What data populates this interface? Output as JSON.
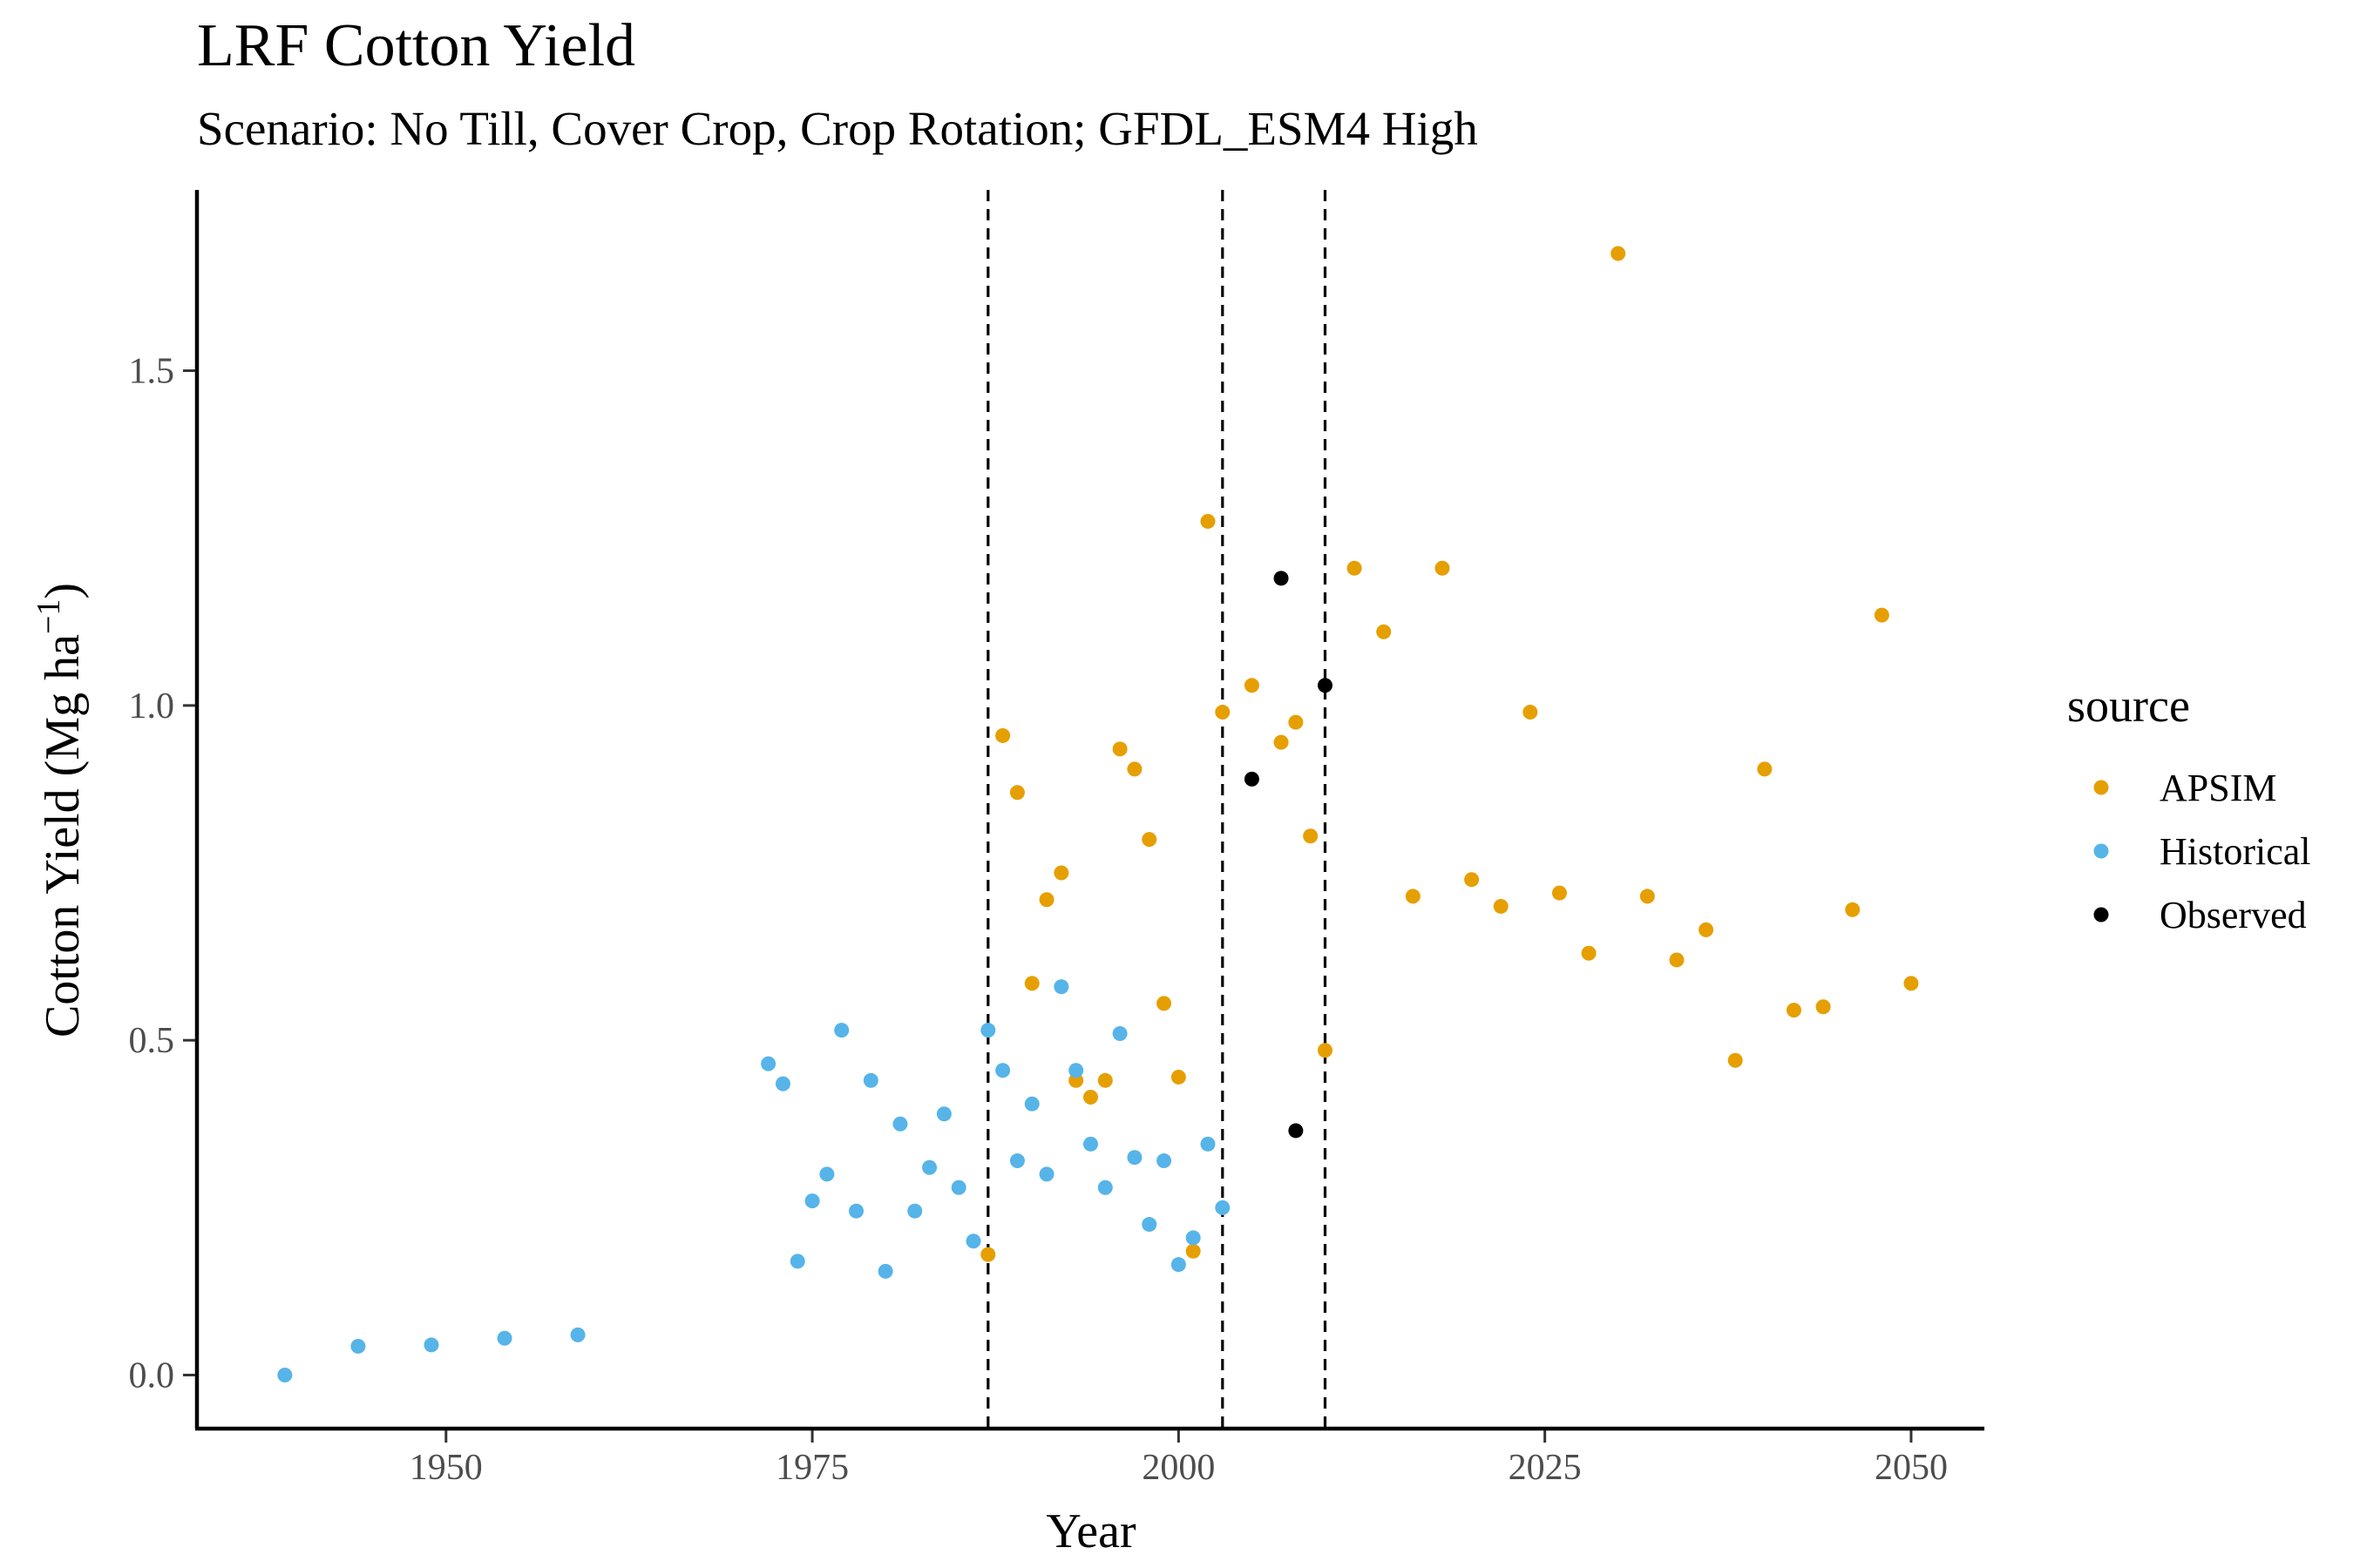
{
  "chart_data": {
    "type": "scatter",
    "title": "LRF Cotton Yield",
    "subtitle": "Scenario: No Till, Cover Crop, Crop Rotation; GFDL_ESM4 High",
    "xlabel": "Year",
    "ylabel": "Cotton Yield (Mg ha",
    "ylabel_sup": "−1",
    "ylabel_close": ")",
    "xlim": [
      1933,
      2055
    ],
    "ylim": [
      -0.08,
      1.77
    ],
    "xticks": [
      1950,
      1975,
      2000,
      2025,
      2050
    ],
    "yticks": [
      0.0,
      0.5,
      1.0,
      1.5
    ],
    "ytick_labels": [
      "0.0",
      "0.5",
      "1.0",
      "1.5"
    ],
    "grid": false,
    "vlines": [
      1987,
      2003,
      2010
    ],
    "legend": {
      "title": "source",
      "position": "right"
    },
    "series": [
      {
        "name": "APSIM",
        "color": "#E69F00",
        "points": [
          [
            1987,
            0.18
          ],
          [
            1988,
            0.955
          ],
          [
            1989,
            0.87
          ],
          [
            1990,
            0.585
          ],
          [
            1991,
            0.71
          ],
          [
            1992,
            0.75
          ],
          [
            1993,
            0.44
          ],
          [
            1994,
            0.415
          ],
          [
            1995,
            0.44
          ],
          [
            1996,
            0.935
          ],
          [
            1997,
            0.905
          ],
          [
            1998,
            0.8
          ],
          [
            1999,
            0.555
          ],
          [
            2000,
            0.445
          ],
          [
            2001,
            0.185
          ],
          [
            2002,
            1.275
          ],
          [
            2003,
            0.99
          ],
          [
            2005,
            1.03
          ],
          [
            2007,
            0.945
          ],
          [
            2008,
            0.975
          ],
          [
            2009,
            0.805
          ],
          [
            2010,
            0.485
          ],
          [
            2012,
            1.205
          ],
          [
            2014,
            1.11
          ],
          [
            2016,
            0.715
          ],
          [
            2018,
            1.205
          ],
          [
            2020,
            0.74
          ],
          [
            2022,
            0.7
          ],
          [
            2024,
            0.99
          ],
          [
            2026,
            0.72
          ],
          [
            2028,
            0.63
          ],
          [
            2030,
            1.675
          ],
          [
            2032,
            0.715
          ],
          [
            2034,
            0.62
          ],
          [
            2036,
            0.665
          ],
          [
            2038,
            0.47
          ],
          [
            2040,
            0.905
          ],
          [
            2042,
            0.545
          ],
          [
            2044,
            0.55
          ],
          [
            2046,
            0.695
          ],
          [
            2048,
            1.135
          ],
          [
            2050,
            0.585
          ]
        ]
      },
      {
        "name": "Historical",
        "color": "#56B4E9",
        "points": [
          [
            1939,
            0.0
          ],
          [
            1944,
            0.043
          ],
          [
            1949,
            0.045
          ],
          [
            1954,
            0.055
          ],
          [
            1959,
            0.06
          ],
          [
            1972,
            0.465
          ],
          [
            1973,
            0.435
          ],
          [
            1974,
            0.17
          ],
          [
            1975,
            0.26
          ],
          [
            1976,
            0.3
          ],
          [
            1977,
            0.515
          ],
          [
            1978,
            0.245
          ],
          [
            1979,
            0.44
          ],
          [
            1980,
            0.155
          ],
          [
            1981,
            0.375
          ],
          [
            1982,
            0.245
          ],
          [
            1983,
            0.31
          ],
          [
            1984,
            0.39
          ],
          [
            1985,
            0.28
          ],
          [
            1986,
            0.2
          ],
          [
            1987,
            0.515
          ],
          [
            1988,
            0.455
          ],
          [
            1989,
            0.32
          ],
          [
            1990,
            0.405
          ],
          [
            1991,
            0.3
          ],
          [
            1992,
            0.58
          ],
          [
            1993,
            0.455
          ],
          [
            1994,
            0.345
          ],
          [
            1995,
            0.28
          ],
          [
            1996,
            0.51
          ],
          [
            1997,
            0.325
          ],
          [
            1998,
            0.225
          ],
          [
            1999,
            0.32
          ],
          [
            2000,
            0.165
          ],
          [
            2001,
            0.205
          ],
          [
            2002,
            0.345
          ],
          [
            2003,
            0.25
          ]
        ]
      },
      {
        "name": "Observed",
        "color": "#000000",
        "points": [
          [
            2005,
            0.89
          ],
          [
            2007,
            1.19
          ],
          [
            2008,
            0.365
          ],
          [
            2010,
            1.03
          ]
        ]
      }
    ]
  }
}
